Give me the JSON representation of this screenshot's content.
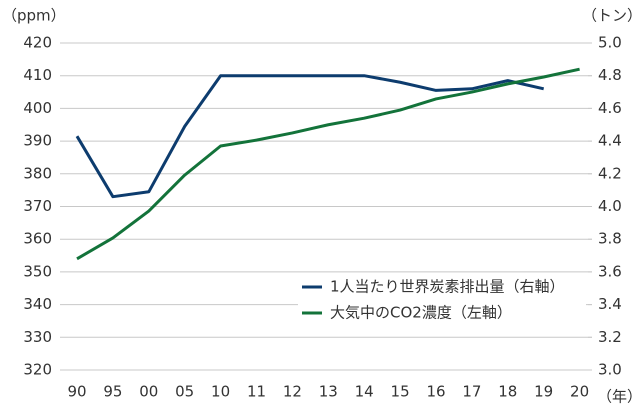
{
  "chart_data": {
    "type": "line",
    "y_unit_label": "（ppm）",
    "y2_unit_label": "（トン）",
    "x_unit_label": "（年）",
    "categories": [
      "90",
      "95",
      "00",
      "05",
      "10",
      "11",
      "12",
      "13",
      "14",
      "15",
      "16",
      "17",
      "18",
      "19",
      "20"
    ],
    "series": [
      {
        "name": "1人当たり世界炭素排出量（右軸）",
        "color": "#0d3c6e",
        "axis": "y2",
        "values": [
          4.43,
          4.06,
          4.09,
          4.49,
          4.8,
          4.8,
          4.8,
          4.8,
          4.8,
          4.76,
          4.71,
          4.72,
          4.77,
          4.72,
          null
        ]
      },
      {
        "name": "大気中のCO2濃度（左軸）",
        "color": "#13733a",
        "values": [
          354,
          360.4,
          368.6,
          379.6,
          388.5,
          390.3,
          392.5,
          395,
          397,
          399.5,
          402.9,
          405,
          407.5,
          409.6,
          412
        ]
      }
    ],
    "ylim": [
      320,
      420
    ],
    "yticks": [
      320,
      330,
      340,
      350,
      360,
      370,
      380,
      390,
      400,
      410,
      420
    ],
    "y2lim": [
      3,
      5
    ],
    "y2ticks": [
      {
        "value": 3,
        "label": "3.0"
      },
      3.2,
      3.4,
      3.6,
      3.8,
      {
        "value": 4,
        "label": "4.0"
      },
      4.2,
      4.4,
      4.6,
      4.8,
      {
        "value": 5,
        "label": "5.0"
      }
    ],
    "grid": true,
    "legend": "lower right"
  }
}
